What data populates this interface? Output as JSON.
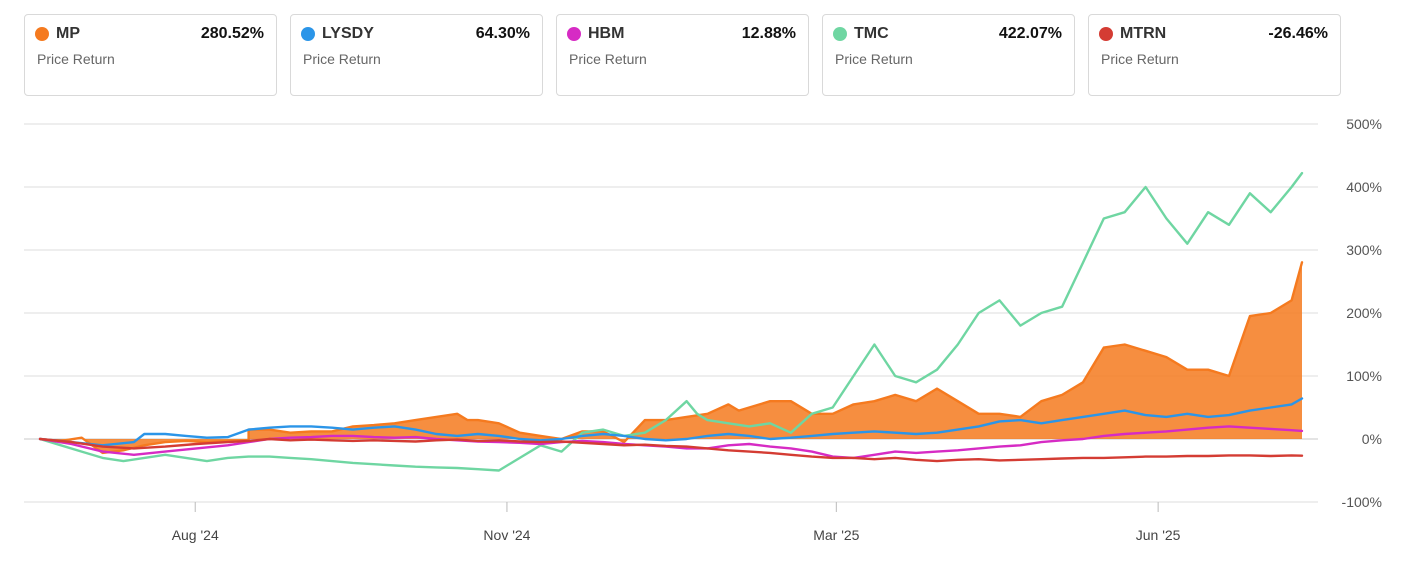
{
  "cards": [
    {
      "ticker": "MP",
      "value": "280.52%",
      "label": "Price Return",
      "color": "#f57a1f"
    },
    {
      "ticker": "LYSDY",
      "value": "64.30%",
      "label": "Price Return",
      "color": "#2b95e8"
    },
    {
      "ticker": "HBM",
      "value": "12.88%",
      "label": "Price Return",
      "color": "#d62bc4"
    },
    {
      "ticker": "TMC",
      "value": "422.07%",
      "label": "Price Return",
      "color": "#6fd6a2"
    },
    {
      "ticker": "MTRN",
      "value": "-26.46%",
      "label": "Price Return",
      "color": "#d43c33"
    }
  ],
  "chart_data": {
    "type": "line",
    "ylim": [
      -100,
      500
    ],
    "y_ticks": [
      500,
      400,
      300,
      200,
      100,
      0,
      -100
    ],
    "y_tick_labels": [
      "500%",
      "400%",
      "300%",
      "200%",
      "100%",
      "0%",
      "-100%"
    ],
    "x_ticks": [
      {
        "label": "Aug '24",
        "t": 0.123
      },
      {
        "label": "Nov '24",
        "t": 0.37
      },
      {
        "label": "Mar '25",
        "t": 0.631
      },
      {
        "label": "Jun '25",
        "t": 0.886
      }
    ],
    "grid": true,
    "series": [
      {
        "name": "MP",
        "color": "#f57a1f",
        "fill": true,
        "points": [
          [
            0,
            0
          ],
          [
            0.02,
            -3
          ],
          [
            0.04,
            2
          ],
          [
            0.06,
            -22
          ],
          [
            0.08,
            -18
          ],
          [
            0.1,
            -10
          ],
          [
            0.12,
            -5
          ],
          [
            0.14,
            -3
          ],
          [
            0.16,
            -5
          ],
          [
            0.18,
            -3
          ],
          [
            0.2,
            -2
          ],
          [
            0.2,
            15
          ],
          [
            0.22,
            15
          ],
          [
            0.24,
            10
          ],
          [
            0.26,
            12
          ],
          [
            0.28,
            12
          ],
          [
            0.3,
            20
          ],
          [
            0.32,
            22
          ],
          [
            0.34,
            25
          ],
          [
            0.36,
            30
          ],
          [
            0.38,
            35
          ],
          [
            0.4,
            40
          ],
          [
            0.41,
            30
          ],
          [
            0.42,
            30
          ],
          [
            0.44,
            25
          ],
          [
            0.46,
            10
          ],
          [
            0.48,
            5
          ],
          [
            0.5,
            0
          ],
          [
            0.52,
            12
          ],
          [
            0.54,
            12
          ],
          [
            0.56,
            -5
          ],
          [
            0.58,
            30
          ],
          [
            0.6,
            30
          ],
          [
            0.62,
            35
          ],
          [
            0.64,
            40
          ],
          [
            0.66,
            55
          ],
          [
            0.67,
            45
          ],
          [
            0.68,
            50
          ],
          [
            0.7,
            60
          ],
          [
            0.72,
            60
          ],
          [
            0.74,
            40
          ],
          [
            0.76,
            40
          ],
          [
            0.78,
            55
          ],
          [
            0.8,
            60
          ],
          [
            0.82,
            70
          ],
          [
            0.84,
            60
          ],
          [
            0.86,
            80
          ],
          [
            0.88,
            60
          ],
          [
            0.9,
            40
          ],
          [
            0.92,
            40
          ],
          [
            0.94,
            35
          ],
          [
            0.96,
            60
          ],
          [
            0.98,
            70
          ],
          [
            1.0,
            90
          ],
          [
            1.02,
            145
          ],
          [
            1.04,
            150
          ],
          [
            1.06,
            140
          ],
          [
            1.08,
            130
          ],
          [
            1.1,
            110
          ],
          [
            1.12,
            110
          ],
          [
            1.14,
            100
          ],
          [
            1.16,
            195
          ],
          [
            1.18,
            200
          ],
          [
            1.2,
            220
          ],
          [
            1.21,
            280.52
          ]
        ]
      },
      {
        "name": "LYSDY",
        "color": "#2b95e8",
        "fill": false,
        "points": [
          [
            0,
            0
          ],
          [
            0.03,
            -5
          ],
          [
            0.06,
            -10
          ],
          [
            0.09,
            -5
          ],
          [
            0.1,
            8
          ],
          [
            0.12,
            8
          ],
          [
            0.14,
            5
          ],
          [
            0.16,
            2
          ],
          [
            0.18,
            3
          ],
          [
            0.2,
            15
          ],
          [
            0.22,
            18
          ],
          [
            0.24,
            20
          ],
          [
            0.26,
            20
          ],
          [
            0.28,
            18
          ],
          [
            0.3,
            15
          ],
          [
            0.32,
            18
          ],
          [
            0.34,
            20
          ],
          [
            0.36,
            15
          ],
          [
            0.38,
            8
          ],
          [
            0.4,
            5
          ],
          [
            0.42,
            8
          ],
          [
            0.44,
            5
          ],
          [
            0.46,
            0
          ],
          [
            0.48,
            -2
          ],
          [
            0.5,
            0
          ],
          [
            0.52,
            5
          ],
          [
            0.54,
            8
          ],
          [
            0.56,
            5
          ],
          [
            0.58,
            0
          ],
          [
            0.6,
            -2
          ],
          [
            0.62,
            0
          ],
          [
            0.64,
            5
          ],
          [
            0.66,
            8
          ],
          [
            0.68,
            5
          ],
          [
            0.7,
            0
          ],
          [
            0.72,
            2
          ],
          [
            0.74,
            5
          ],
          [
            0.76,
            8
          ],
          [
            0.78,
            10
          ],
          [
            0.8,
            12
          ],
          [
            0.82,
            10
          ],
          [
            0.84,
            8
          ],
          [
            0.86,
            10
          ],
          [
            0.88,
            15
          ],
          [
            0.9,
            20
          ],
          [
            0.92,
            28
          ],
          [
            0.94,
            30
          ],
          [
            0.96,
            25
          ],
          [
            0.98,
            30
          ],
          [
            1.0,
            35
          ],
          [
            1.02,
            40
          ],
          [
            1.04,
            45
          ],
          [
            1.06,
            38
          ],
          [
            1.08,
            35
          ],
          [
            1.1,
            40
          ],
          [
            1.12,
            35
          ],
          [
            1.14,
            38
          ],
          [
            1.16,
            45
          ],
          [
            1.18,
            50
          ],
          [
            1.2,
            55
          ],
          [
            1.21,
            64.3
          ]
        ]
      },
      {
        "name": "HBM",
        "color": "#d62bc4",
        "fill": false,
        "points": [
          [
            0,
            0
          ],
          [
            0.03,
            -8
          ],
          [
            0.06,
            -20
          ],
          [
            0.09,
            -25
          ],
          [
            0.12,
            -20
          ],
          [
            0.15,
            -15
          ],
          [
            0.18,
            -10
          ],
          [
            0.2,
            -5
          ],
          [
            0.22,
            0
          ],
          [
            0.24,
            2
          ],
          [
            0.26,
            3
          ],
          [
            0.28,
            5
          ],
          [
            0.3,
            5
          ],
          [
            0.32,
            3
          ],
          [
            0.34,
            2
          ],
          [
            0.36,
            3
          ],
          [
            0.38,
            0
          ],
          [
            0.4,
            -2
          ],
          [
            0.42,
            -4
          ],
          [
            0.44,
            -5
          ],
          [
            0.46,
            -6
          ],
          [
            0.48,
            -8
          ],
          [
            0.5,
            -5
          ],
          [
            0.52,
            -3
          ],
          [
            0.54,
            -5
          ],
          [
            0.56,
            -8
          ],
          [
            0.58,
            -10
          ],
          [
            0.6,
            -12
          ],
          [
            0.62,
            -15
          ],
          [
            0.64,
            -15
          ],
          [
            0.66,
            -10
          ],
          [
            0.68,
            -8
          ],
          [
            0.7,
            -12
          ],
          [
            0.72,
            -15
          ],
          [
            0.74,
            -20
          ],
          [
            0.76,
            -28
          ],
          [
            0.78,
            -30
          ],
          [
            0.8,
            -25
          ],
          [
            0.82,
            -20
          ],
          [
            0.84,
            -22
          ],
          [
            0.86,
            -20
          ],
          [
            0.88,
            -18
          ],
          [
            0.9,
            -15
          ],
          [
            0.92,
            -12
          ],
          [
            0.94,
            -10
          ],
          [
            0.96,
            -5
          ],
          [
            0.98,
            -2
          ],
          [
            1.0,
            0
          ],
          [
            1.02,
            5
          ],
          [
            1.04,
            8
          ],
          [
            1.06,
            10
          ],
          [
            1.08,
            12
          ],
          [
            1.1,
            15
          ],
          [
            1.12,
            18
          ],
          [
            1.14,
            20
          ],
          [
            1.16,
            18
          ],
          [
            1.18,
            16
          ],
          [
            1.2,
            14
          ],
          [
            1.21,
            12.88
          ]
        ]
      },
      {
        "name": "TMC",
        "color": "#6fd6a2",
        "fill": false,
        "points": [
          [
            0,
            0
          ],
          [
            0.02,
            -10
          ],
          [
            0.04,
            -20
          ],
          [
            0.06,
            -30
          ],
          [
            0.08,
            -35
          ],
          [
            0.1,
            -30
          ],
          [
            0.12,
            -25
          ],
          [
            0.14,
            -30
          ],
          [
            0.16,
            -35
          ],
          [
            0.18,
            -30
          ],
          [
            0.2,
            -28
          ],
          [
            0.22,
            -28
          ],
          [
            0.24,
            -30
          ],
          [
            0.26,
            -32
          ],
          [
            0.28,
            -35
          ],
          [
            0.3,
            -38
          ],
          [
            0.32,
            -40
          ],
          [
            0.34,
            -42
          ],
          [
            0.36,
            -44
          ],
          [
            0.38,
            -45
          ],
          [
            0.4,
            -46
          ],
          [
            0.42,
            -48
          ],
          [
            0.44,
            -50
          ],
          [
            0.46,
            -30
          ],
          [
            0.48,
            -10
          ],
          [
            0.5,
            -20
          ],
          [
            0.52,
            10
          ],
          [
            0.54,
            15
          ],
          [
            0.56,
            5
          ],
          [
            0.58,
            10
          ],
          [
            0.6,
            30
          ],
          [
            0.62,
            60
          ],
          [
            0.63,
            40
          ],
          [
            0.64,
            30
          ],
          [
            0.66,
            25
          ],
          [
            0.68,
            20
          ],
          [
            0.7,
            25
          ],
          [
            0.72,
            10
          ],
          [
            0.74,
            40
          ],
          [
            0.76,
            50
          ],
          [
            0.78,
            100
          ],
          [
            0.8,
            150
          ],
          [
            0.82,
            100
          ],
          [
            0.84,
            90
          ],
          [
            0.86,
            110
          ],
          [
            0.88,
            150
          ],
          [
            0.9,
            200
          ],
          [
            0.92,
            220
          ],
          [
            0.94,
            180
          ],
          [
            0.96,
            200
          ],
          [
            0.98,
            210
          ],
          [
            1.0,
            280
          ],
          [
            1.02,
            350
          ],
          [
            1.04,
            360
          ],
          [
            1.06,
            400
          ],
          [
            1.08,
            350
          ],
          [
            1.1,
            310
          ],
          [
            1.12,
            360
          ],
          [
            1.14,
            340
          ],
          [
            1.16,
            390
          ],
          [
            1.18,
            360
          ],
          [
            1.2,
            400
          ],
          [
            1.21,
            422.07
          ]
        ]
      },
      {
        "name": "MTRN",
        "color": "#d43c33",
        "fill": false,
        "points": [
          [
            0,
            0
          ],
          [
            0.03,
            -5
          ],
          [
            0.06,
            -12
          ],
          [
            0.09,
            -15
          ],
          [
            0.12,
            -12
          ],
          [
            0.15,
            -8
          ],
          [
            0.18,
            -5
          ],
          [
            0.2,
            -3
          ],
          [
            0.22,
            0
          ],
          [
            0.24,
            -2
          ],
          [
            0.26,
            -1
          ],
          [
            0.28,
            -2
          ],
          [
            0.3,
            -3
          ],
          [
            0.32,
            -2
          ],
          [
            0.34,
            -3
          ],
          [
            0.36,
            -4
          ],
          [
            0.38,
            -2
          ],
          [
            0.4,
            -1
          ],
          [
            0.42,
            -3
          ],
          [
            0.44,
            -2
          ],
          [
            0.46,
            -4
          ],
          [
            0.48,
            -5
          ],
          [
            0.5,
            -4
          ],
          [
            0.52,
            -6
          ],
          [
            0.54,
            -8
          ],
          [
            0.56,
            -10
          ],
          [
            0.58,
            -9
          ],
          [
            0.6,
            -11
          ],
          [
            0.62,
            -12
          ],
          [
            0.64,
            -15
          ],
          [
            0.66,
            -18
          ],
          [
            0.68,
            -20
          ],
          [
            0.7,
            -22
          ],
          [
            0.72,
            -25
          ],
          [
            0.74,
            -28
          ],
          [
            0.76,
            -30
          ],
          [
            0.78,
            -30
          ],
          [
            0.8,
            -32
          ],
          [
            0.82,
            -30
          ],
          [
            0.84,
            -33
          ],
          [
            0.86,
            -35
          ],
          [
            0.88,
            -33
          ],
          [
            0.9,
            -32
          ],
          [
            0.92,
            -34
          ],
          [
            0.94,
            -33
          ],
          [
            0.96,
            -32
          ],
          [
            0.98,
            -31
          ],
          [
            1.0,
            -30
          ],
          [
            1.02,
            -30
          ],
          [
            1.04,
            -29
          ],
          [
            1.06,
            -28
          ],
          [
            1.08,
            -28
          ],
          [
            1.1,
            -27
          ],
          [
            1.12,
            -27
          ],
          [
            1.14,
            -26
          ],
          [
            1.16,
            -26
          ],
          [
            1.18,
            -27
          ],
          [
            1.2,
            -26
          ],
          [
            1.21,
            -26.46
          ]
        ]
      }
    ]
  }
}
